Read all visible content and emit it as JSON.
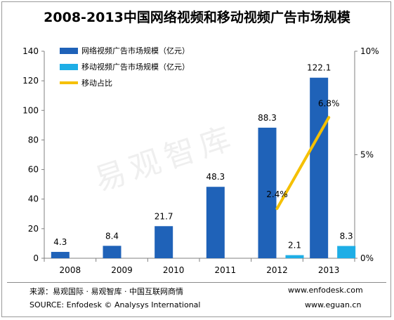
{
  "title": "2008-2013中国网络视频和移动视频广告市场规模",
  "watermark": "易观智库",
  "footer": {
    "source_cn": "来源：易观国际 · 易观智库 · 中国互联网商情",
    "source_en": "SOURCE: Enfodesk © Analysys International",
    "site1": "www.enfodesk.com",
    "site2": "www.eguan.cn"
  },
  "colors": {
    "online": "#1F62B8",
    "mobile": "#1EAEE6",
    "ratio": "#F5C000",
    "axis": "#808080"
  },
  "chart_data": {
    "type": "bar",
    "title": "2008-2013中国网络视频和移动视频广告市场规模",
    "categories": [
      "2008",
      "2009",
      "2010",
      "2011",
      "2012",
      "2013"
    ],
    "ylim": [
      0,
      140
    ],
    "yticks": [
      "0",
      "20",
      "40",
      "60",
      "80",
      "100",
      "120",
      "140"
    ],
    "y2lim": [
      0,
      10
    ],
    "y2ticks": [
      "0%",
      "5%",
      "10%"
    ],
    "legend_position": "top-left",
    "series": [
      {
        "name": "网络视频广告市场规模（亿元）",
        "kind": "bar",
        "values": [
          4.3,
          8.4,
          21.7,
          48.3,
          88.3,
          122.1
        ],
        "labels": [
          "4.3",
          "8.4",
          "21.7",
          "48.3",
          "88.3",
          "122.1"
        ]
      },
      {
        "name": "移动视频广告市场规模（亿元）",
        "kind": "bar",
        "values": [
          null,
          null,
          null,
          null,
          2.1,
          8.3
        ],
        "labels": [
          "",
          "",
          "",
          "",
          "2.1",
          "8.3"
        ]
      },
      {
        "name": "移动占比",
        "kind": "line",
        "axis": "right",
        "values": [
          null,
          null,
          null,
          null,
          2.4,
          6.8
        ],
        "labels": [
          "",
          "",
          "",
          "",
          "2.4%",
          "6.8%"
        ]
      }
    ]
  }
}
